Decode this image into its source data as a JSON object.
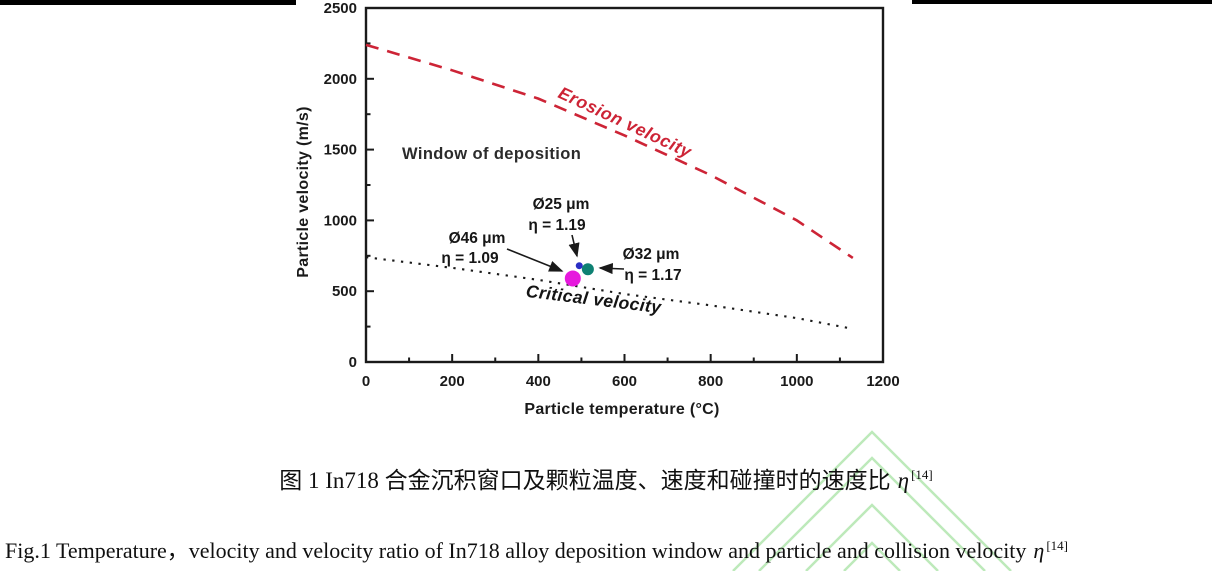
{
  "figure": {
    "annotations": {
      "window_label": "Window of deposition",
      "erosion_label": "Erosion velocity",
      "critical_label": "Critical velocity"
    }
  },
  "chart_data": {
    "type": "line",
    "title": "",
    "xlabel": "Particle temperature (°C)",
    "ylabel": "Particle velocity (m/s)",
    "xlim": [
      0,
      1200
    ],
    "ylim": [
      0,
      2500
    ],
    "x_ticks": [
      0,
      200,
      400,
      600,
      800,
      1000,
      1200
    ],
    "y_ticks": [
      0,
      500,
      1000,
      1500,
      2000,
      2500
    ],
    "grid": false,
    "legend": "labels drawn along lines",
    "series": [
      {
        "name": "Erosion velocity",
        "style": "dashed",
        "color": "#cd2436",
        "points": [
          [
            0,
            2240
          ],
          [
            200,
            2060
          ],
          [
            400,
            1860
          ],
          [
            600,
            1600
          ],
          [
            800,
            1320
          ],
          [
            1000,
            1000
          ],
          [
            1130,
            735
          ]
        ]
      },
      {
        "name": "Critical velocity",
        "style": "dotted",
        "color": "#1a1a1a",
        "points": [
          [
            0,
            740
          ],
          [
            200,
            665
          ],
          [
            400,
            580
          ],
          [
            600,
            480
          ],
          [
            800,
            400
          ],
          [
            1000,
            310
          ],
          [
            1120,
            240
          ]
        ]
      }
    ],
    "points": [
      {
        "size_label": "Ø46 μm",
        "eta_label": "η = 1.09",
        "temperature_c": 480,
        "velocity_ms": 590,
        "color": "#e619dd"
      },
      {
        "size_label": "Ø25 μm",
        "eta_label": "η = 1.19",
        "temperature_c": 495,
        "velocity_ms": 680,
        "color": "#2a2ec4"
      },
      {
        "size_label": "Ø32 μm",
        "eta_label": "η = 1.17",
        "temperature_c": 515,
        "velocity_ms": 655,
        "color": "#0e8173"
      }
    ]
  },
  "captions": {
    "chinese": {
      "text": "图 1 In718 合金沉积窗口及颗粒温度、速度和碰撞时的速度比",
      "eta": "η",
      "ref": "[14]"
    },
    "english": {
      "text": "Fig.1 Temperature，velocity and velocity ratio of In718 alloy deposition window and particle and collision velocity",
      "eta": "η",
      "ref": "[14]"
    }
  },
  "watermark_color": "#a8e2a4"
}
